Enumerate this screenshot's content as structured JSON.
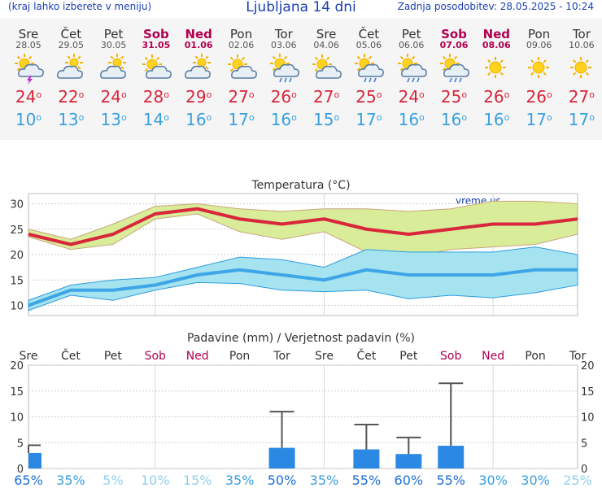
{
  "header": {
    "left_note": "(kraj lahko izberete v meniju)",
    "title": "Ljubljana 14 dni",
    "updated": "Zadnja posodobitev: 28.05.2025 - 10:24"
  },
  "days": [
    {
      "name": "Sre",
      "date": "28.05",
      "weekend": false,
      "icon": "sun-thunderstorm-icon",
      "max": "24",
      "min": "10"
    },
    {
      "name": "Čet",
      "date": "29.05",
      "weekend": false,
      "icon": "partly-cloudy-icon",
      "max": "22",
      "min": "13"
    },
    {
      "name": "Pet",
      "date": "30.05",
      "weekend": false,
      "icon": "partly-cloudy-icon",
      "max": "24",
      "min": "13"
    },
    {
      "name": "Sob",
      "date": "31.05",
      "weekend": true,
      "icon": "sun-cloud-icon",
      "max": "28",
      "min": "14"
    },
    {
      "name": "Ned",
      "date": "01.06",
      "weekend": true,
      "icon": "partly-cloudy-icon",
      "max": "29",
      "min": "16"
    },
    {
      "name": "Pon",
      "date": "02.06",
      "weekend": false,
      "icon": "sun-cloud-icon",
      "max": "27",
      "min": "17"
    },
    {
      "name": "Tor",
      "date": "03.06",
      "weekend": false,
      "icon": "sun-rain-icon",
      "max": "26",
      "min": "16"
    },
    {
      "name": "Sre",
      "date": "04.06",
      "weekend": false,
      "icon": "sun-cloud-icon",
      "max": "27",
      "min": "15"
    },
    {
      "name": "Čet",
      "date": "05.06",
      "weekend": false,
      "icon": "sun-rain-icon",
      "max": "25",
      "min": "17"
    },
    {
      "name": "Pet",
      "date": "06.06",
      "weekend": false,
      "icon": "sun-rain-icon",
      "max": "24",
      "min": "16"
    },
    {
      "name": "Sob",
      "date": "07.06",
      "weekend": true,
      "icon": "sun-rain-icon",
      "max": "25",
      "min": "16"
    },
    {
      "name": "Ned",
      "date": "08.06",
      "weekend": true,
      "icon": "sun-icon",
      "max": "26",
      "min": "16"
    },
    {
      "name": "Pon",
      "date": "09.06",
      "weekend": false,
      "icon": "sun-icon",
      "max": "26",
      "min": "17"
    },
    {
      "name": "Tor",
      "date": "10.06",
      "weekend": false,
      "icon": "sun-icon",
      "max": "27",
      "min": "17"
    }
  ],
  "degree_symbol": "o",
  "colors": {
    "max": "#d8263b",
    "min": "#3aa0e0",
    "weekend": "#b0004f",
    "max_band": "#d8ec9a",
    "min_band": "#a5e3f0",
    "bar": "#2b88e3"
  },
  "chart_data": [
    {
      "type": "line",
      "title": "Temperatura (°C)",
      "watermark": "vreme.us",
      "x": [
        "Sre",
        "Čet",
        "Pet",
        "Sob",
        "Ned",
        "Pon",
        "Tor",
        "Sre",
        "Čet",
        "Pet",
        "Sob",
        "Ned",
        "Pon",
        "Tor"
      ],
      "ylim": [
        8,
        32
      ],
      "yticks": [
        10,
        15,
        20,
        25,
        30
      ],
      "grid": true,
      "series": [
        {
          "values": [
            24,
            22,
            24,
            28,
            29,
            27,
            26,
            27,
            25,
            24,
            25,
            26,
            26,
            27
          ]
        },
        {
          "band_upper": [
            25,
            23,
            26,
            29.5,
            30,
            29,
            28.5,
            29,
            29,
            28.5,
            29,
            30.5,
            30.5,
            30
          ]
        },
        {
          "band_lower": [
            23.5,
            21,
            22,
            27,
            28,
            24.5,
            23,
            24.5,
            20.5,
            19.5,
            21,
            21.5,
            22,
            24
          ]
        },
        {
          "values": [
            10,
            13,
            13,
            14,
            16,
            17,
            16,
            15,
            17,
            16,
            16,
            16,
            17,
            17
          ]
        },
        {
          "band_upper": [
            11,
            14,
            15,
            15.5,
            17.5,
            19.5,
            19,
            17.5,
            21,
            20.5,
            20.5,
            20.5,
            21.5,
            20
          ]
        },
        {
          "band_lower": [
            9,
            12,
            11,
            13,
            14.5,
            14.3,
            13,
            12.7,
            13,
            11.3,
            12,
            11.5,
            12.5,
            14
          ]
        }
      ]
    },
    {
      "type": "bar",
      "title": "Padavine (mm) / Verjetnost padavin (%)",
      "x": [
        "Sre",
        "Čet",
        "Pet",
        "Sob",
        "Ned",
        "Pon",
        "Tor",
        "Sre",
        "Čet",
        "Pet",
        "Sob",
        "Ned",
        "Pon",
        "Tor"
      ],
      "ylim": [
        0,
        20
      ],
      "yticks": [
        0,
        5,
        10,
        15,
        20
      ],
      "values": [
        3,
        0,
        0,
        0,
        0,
        0,
        4,
        0,
        3.7,
        2.8,
        4.4,
        0,
        0,
        0
      ],
      "error_max": [
        4.5,
        0,
        0,
        0,
        0,
        0,
        11,
        0,
        8.5,
        6,
        16.5,
        0,
        0,
        0
      ],
      "probability": [
        "65%",
        "35%",
        "5%",
        "10%",
        "15%",
        "35%",
        "50%",
        "35%",
        "55%",
        "60%",
        "55%",
        "30%",
        "30%",
        "25%"
      ]
    }
  ]
}
